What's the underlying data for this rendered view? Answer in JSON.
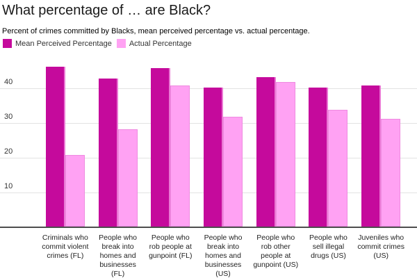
{
  "title": "What percentage of … are Black?",
  "subtitle": "Percent of crimes committed by Blacks, mean perceived percentage vs. actual percentage.",
  "colors": {
    "perceived_fill": "#c50a9c",
    "perceived_edge": "#ea77d4",
    "actual_fill": "#ffa2f3",
    "actual_edge": "#ee8ae0",
    "axis_line": "#4d4d4d",
    "gridline": "#e2e2e2"
  },
  "chart_data": {
    "type": "bar",
    "title": "What percentage of … are Black?",
    "subtitle": "Percent of crimes committed by Blacks, mean perceived percentage vs. actual percentage.",
    "categories": [
      "Criminals who commit violent crimes (FL)",
      "People who break into homes and businesses (FL)",
      "People who rob people at gunpoint (FL)",
      "People who break into homes and businesses (US)",
      "People who rob other people at gunpoint (US)",
      "People who sell illegal drugs (US)",
      "Juveniles who commit crimes (US)"
    ],
    "series": [
      {
        "name": "Mean Perceived Percentage",
        "color": "#c50a9c",
        "edge_color": "#ea77d4",
        "values": [
          46.5,
          43,
          46,
          40.5,
          43.5,
          40.5,
          41
        ]
      },
      {
        "name": "Actual Percentage",
        "color": "#ffa2f3",
        "edge_color": "#ee8ae0",
        "values": [
          21,
          28.5,
          41,
          32,
          42,
          34,
          31.5
        ]
      }
    ],
    "xlabel": "",
    "ylabel": "",
    "yticks": [
      10,
      20,
      30,
      40
    ],
    "ylim": [
      0,
      48.6
    ],
    "grid": true,
    "legend_position": "top-left"
  }
}
